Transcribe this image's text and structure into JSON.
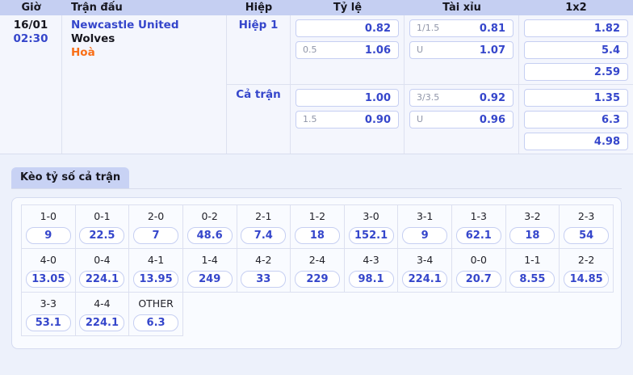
{
  "colors": {
    "accent_blue": "#3546cb",
    "draw_orange": "#f96e16",
    "header_bg": "#c5cff2",
    "tab_bg": "#c8d2f4",
    "page_bg": "#edf1fb",
    "box_border": "#c6cff2"
  },
  "match_table": {
    "headers": [
      "Giờ",
      "Trận đấu",
      "Hiệp",
      "Tỷ lệ",
      "Tài xỉu",
      "1x2"
    ],
    "match": {
      "date": "16/01",
      "time": "02:30",
      "home_team": "Newcastle United",
      "away_team": "Wolves",
      "draw_label": "Hoà"
    },
    "periods": [
      {
        "label": "Hiệp 1",
        "handicap": [
          {
            "line": "",
            "odds": "0.82"
          },
          {
            "line": "0.5",
            "odds": "1.06"
          }
        ],
        "over_under": [
          {
            "line": "1/1.5",
            "odds": "0.81"
          },
          {
            "line": "U",
            "odds": "1.07"
          }
        ],
        "one_x_two": [
          {
            "odds": "1.82"
          },
          {
            "odds": "5.4"
          },
          {
            "odds": "2.59"
          }
        ]
      },
      {
        "label": "Cả trận",
        "handicap": [
          {
            "line": "",
            "odds": "1.00"
          },
          {
            "line": "1.5",
            "odds": "0.90"
          }
        ],
        "over_under": [
          {
            "line": "3/3.5",
            "odds": "0.92"
          },
          {
            "line": "U",
            "odds": "0.96"
          }
        ],
        "one_x_two": [
          {
            "odds": "1.35"
          },
          {
            "odds": "6.3"
          },
          {
            "odds": "4.98"
          }
        ]
      }
    ]
  },
  "correct_score": {
    "tab_label": "Kèo tỷ số cả trận",
    "rows": [
      [
        {
          "score": "1-0",
          "odds": "9"
        },
        {
          "score": "0-1",
          "odds": "22.5"
        },
        {
          "score": "2-0",
          "odds": "7"
        },
        {
          "score": "0-2",
          "odds": "48.6"
        },
        {
          "score": "2-1",
          "odds": "7.4"
        },
        {
          "score": "1-2",
          "odds": "18"
        },
        {
          "score": "3-0",
          "odds": "152.1"
        },
        {
          "score": "3-1",
          "odds": "9"
        },
        {
          "score": "1-3",
          "odds": "62.1"
        },
        {
          "score": "3-2",
          "odds": "18"
        },
        {
          "score": "2-3",
          "odds": "54"
        }
      ],
      [
        {
          "score": "4-0",
          "odds": "13.05"
        },
        {
          "score": "0-4",
          "odds": "224.1"
        },
        {
          "score": "4-1",
          "odds": "13.95"
        },
        {
          "score": "1-4",
          "odds": "249"
        },
        {
          "score": "4-2",
          "odds": "33"
        },
        {
          "score": "2-4",
          "odds": "229"
        },
        {
          "score": "4-3",
          "odds": "98.1"
        },
        {
          "score": "3-4",
          "odds": "224.1"
        },
        {
          "score": "0-0",
          "odds": "20.7"
        },
        {
          "score": "1-1",
          "odds": "8.55"
        },
        {
          "score": "2-2",
          "odds": "14.85"
        }
      ],
      [
        {
          "score": "3-3",
          "odds": "53.1"
        },
        {
          "score": "4-4",
          "odds": "224.1"
        },
        {
          "score": "OTHER",
          "odds": "6.3"
        }
      ]
    ]
  }
}
